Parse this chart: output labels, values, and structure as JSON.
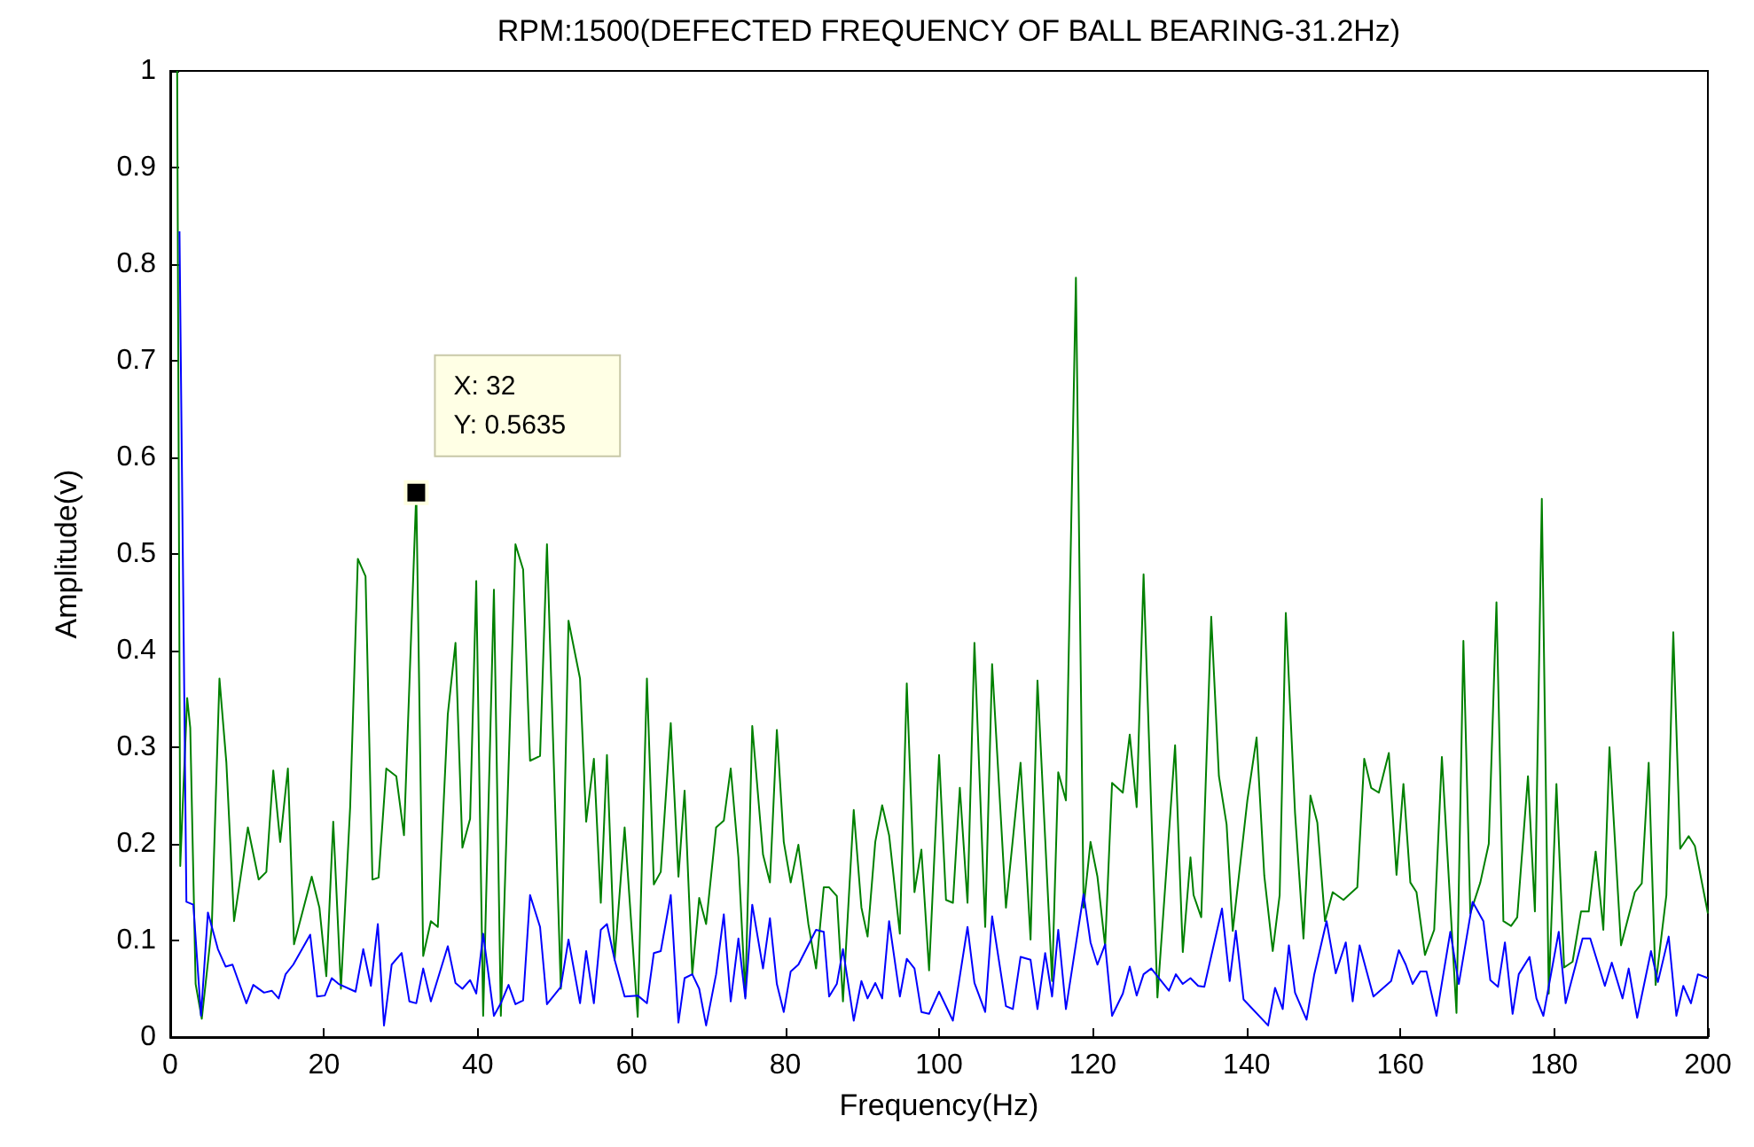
{
  "chart_data": {
    "type": "line",
    "title": "RPM:1500(DEFECTED FREQUENCY OF BALL BEARING-31.2Hz)",
    "xlabel": "Frequency(Hz)",
    "ylabel": "Amplitude(v)",
    "xlim": [
      0,
      200
    ],
    "xticks": [
      0,
      20,
      40,
      60,
      80,
      100,
      120,
      140,
      160,
      180,
      200
    ],
    "ylim": [
      0,
      1
    ],
    "yticks": [
      0,
      0.1,
      0.2,
      0.3,
      0.4,
      0.5,
      0.6,
      0.7,
      0.8,
      0.9,
      1
    ],
    "grid": false,
    "marker": "none",
    "line_style": "solid",
    "annotations": [
      {
        "text": "X: 32\nY: 0.5635",
        "x": 32,
        "y": 0.5635
      }
    ],
    "series": [
      {
        "color": "#008000",
        "x": [
          0.9,
          1.3,
          2.2,
          2.6,
          3.3,
          4.1,
          5.4,
          6.4,
          7.3,
          8.3,
          10.1,
          11.5,
          12.5,
          13.4,
          14.3,
          15.3,
          16.1,
          18.4,
          19.4,
          20.3,
          21.2,
          22.2,
          23.4,
          24.4,
          25.4,
          26.3,
          27.1,
          28.1,
          29.4,
          30.4,
          32,
          32.9,
          33.9,
          34.8,
          36.1,
          37.1,
          38,
          39,
          39.8,
          40.7,
          42.1,
          43,
          44,
          44.9,
          45.9,
          46.8,
          48.1,
          49,
          50.8,
          51.8,
          53.3,
          54.1,
          55.1,
          56,
          56.8,
          57.8,
          59.1,
          60.8,
          62,
          62.9,
          63.8,
          65.1,
          66.1,
          66.9,
          67.9,
          68.8,
          69.7,
          71,
          72,
          72.9,
          73.9,
          74.8,
          75.7,
          77.1,
          78,
          78.9,
          79.8,
          80.7,
          81.7,
          83,
          84,
          85,
          85.7,
          86.7,
          87.5,
          88.9,
          89.9,
          90.7,
          91.7,
          92.6,
          93.5,
          94.9,
          95.8,
          96.8,
          97.7,
          98.7,
          100,
          100.9,
          101.8,
          102.7,
          103.7,
          104.6,
          106,
          106.9,
          108.7,
          110.6,
          111.9,
          112.8,
          114.7,
          115.5,
          116.5,
          117.8,
          118.8,
          119.7,
          120.6,
          121.6,
          122.5,
          123.9,
          124.8,
          125.7,
          126.6,
          128.4,
          130.7,
          131.7,
          132.7,
          133.1,
          134.1,
          135.4,
          136.4,
          137.4,
          138.2,
          140.1,
          141.3,
          142.3,
          143.4,
          144.3,
          145.1,
          146.3,
          147.4,
          148.3,
          149.2,
          150.2,
          151.2,
          152.6,
          153.7,
          154.4,
          155.3,
          156.2,
          157.2,
          158.5,
          159.5,
          160.4,
          161.3,
          162.1,
          163.2,
          164.4,
          165.4,
          167.3,
          168.2,
          169.1,
          170.4,
          171.5,
          172.5,
          173.4,
          174.4,
          175.2,
          176.6,
          177.5,
          178.4,
          179.3,
          180.3,
          181.3,
          182.4,
          183.5,
          184.5,
          185.4,
          186.4,
          187.2,
          188.7,
          190.5,
          191.4,
          192.3,
          193.2,
          194.6,
          195.5,
          196.4,
          197.5,
          198.3,
          200
        ],
        "values": [
          1.0,
          0.177,
          0.351,
          0.32,
          0.055,
          0.019,
          0.114,
          0.371,
          0.284,
          0.12,
          0.217,
          0.163,
          0.171,
          0.276,
          0.202,
          0.278,
          0.096,
          0.166,
          0.134,
          0.063,
          0.223,
          0.05,
          0.238,
          0.495,
          0.477,
          0.163,
          0.165,
          0.278,
          0.27,
          0.209,
          0.5635,
          0.084,
          0.12,
          0.114,
          0.334,
          0.408,
          0.196,
          0.226,
          0.472,
          0.022,
          0.463,
          0.022,
          0.278,
          0.51,
          0.484,
          0.286,
          0.291,
          0.51,
          0.05,
          0.431,
          0.371,
          0.223,
          0.288,
          0.139,
          0.292,
          0.08,
          0.217,
          0.021,
          0.371,
          0.158,
          0.171,
          0.325,
          0.166,
          0.255,
          0.065,
          0.144,
          0.117,
          0.217,
          0.224,
          0.278,
          0.186,
          0.042,
          0.322,
          0.189,
          0.16,
          0.318,
          0.202,
          0.16,
          0.199,
          0.117,
          0.071,
          0.155,
          0.155,
          0.146,
          0.037,
          0.235,
          0.134,
          0.104,
          0.202,
          0.24,
          0.209,
          0.107,
          0.366,
          0.15,
          0.194,
          0.069,
          0.292,
          0.142,
          0.139,
          0.258,
          0.139,
          0.408,
          0.114,
          0.386,
          0.134,
          0.284,
          0.101,
          0.369,
          0.058,
          0.274,
          0.245,
          0.786,
          0.134,
          0.202,
          0.166,
          0.094,
          0.263,
          0.253,
          0.313,
          0.238,
          0.479,
          0.041,
          0.302,
          0.088,
          0.186,
          0.147,
          0.124,
          0.435,
          0.27,
          0.22,
          0.11,
          0.245,
          0.31,
          0.167,
          0.089,
          0.147,
          0.439,
          0.232,
          0.102,
          0.25,
          0.222,
          0.12,
          0.15,
          0.142,
          0.15,
          0.155,
          0.288,
          0.258,
          0.253,
          0.294,
          0.168,
          0.262,
          0.16,
          0.15,
          0.085,
          0.111,
          0.29,
          0.025,
          0.41,
          0.128,
          0.16,
          0.2,
          0.45,
          0.12,
          0.115,
          0.124,
          0.27,
          0.13,
          0.557,
          0.045,
          0.262,
          0.072,
          0.078,
          0.13,
          0.13,
          0.192,
          0.111,
          0.3,
          0.095,
          0.15,
          0.159,
          0.284,
          0.054,
          0.147,
          0.419,
          0.195,
          0.208,
          0.198,
          0.128
        ]
      },
      {
        "color": "#0000ff",
        "x": [
          1.2,
          2.1,
          3,
          4,
          4.9,
          6.2,
          7.2,
          8.1,
          9.9,
          10.8,
          12.2,
          13.2,
          14.1,
          15,
          16,
          18.2,
          19.1,
          20.1,
          21,
          21.9,
          24.1,
          25.1,
          26.1,
          27,
          27.8,
          28.8,
          30.1,
          31.1,
          32,
          32.9,
          33.9,
          36.1,
          37.1,
          38,
          39,
          39.8,
          40.7,
          42.1,
          43,
          44,
          44.9,
          45.9,
          46.8,
          48.1,
          49,
          50.8,
          51.8,
          53.3,
          54.1,
          55.1,
          56,
          56.8,
          57.8,
          59.1,
          60.8,
          62,
          62.9,
          63.8,
          65.1,
          66.1,
          66.9,
          67.9,
          68.8,
          69.7,
          71,
          72,
          72.9,
          73.9,
          74.8,
          75.7,
          77.1,
          78,
          78.9,
          79.8,
          80.7,
          81.7,
          84,
          85,
          85.7,
          86.7,
          87.5,
          88.9,
          89.9,
          90.7,
          91.7,
          92.6,
          93.5,
          94.9,
          95.8,
          96.8,
          97.7,
          98.7,
          100,
          101.8,
          103.7,
          104.6,
          106,
          106.9,
          108.7,
          109.6,
          110.6,
          111.9,
          112.8,
          113.8,
          114.7,
          115.5,
          116.5,
          118.8,
          119.7,
          120.6,
          121.6,
          122.5,
          123.9,
          124.8,
          125.7,
          126.6,
          127.6,
          129.9,
          130.8,
          131.7,
          132.7,
          133.7,
          134.5,
          136.8,
          137.8,
          138.6,
          139.6,
          142.8,
          143.7,
          144.7,
          145.5,
          146.3,
          147.8,
          148.8,
          150.4,
          151.6,
          152.9,
          153.8,
          154.7,
          156.5,
          158.8,
          159.8,
          160.7,
          161.6,
          162.6,
          163.4,
          164.7,
          166.5,
          167.6,
          169.4,
          170.8,
          171.7,
          172.7,
          173.6,
          174.6,
          175.4,
          176.8,
          177.7,
          178.6,
          180.6,
          181.5,
          183.7,
          184.7,
          186.6,
          187.5,
          188.9,
          189.7,
          190.8,
          192.6,
          193.5,
          194.9,
          195.9,
          196.8,
          197.8,
          198.7,
          200
        ],
        "values": [
          0.834,
          0.14,
          0.137,
          0.022,
          0.129,
          0.091,
          0.073,
          0.075,
          0.035,
          0.054,
          0.046,
          0.048,
          0.04,
          0.065,
          0.075,
          0.106,
          0.042,
          0.043,
          0.061,
          0.055,
          0.047,
          0.091,
          0.053,
          0.117,
          0.012,
          0.075,
          0.087,
          0.037,
          0.035,
          0.071,
          0.037,
          0.094,
          0.056,
          0.05,
          0.059,
          0.045,
          0.107,
          0.022,
          0.035,
          0.054,
          0.034,
          0.038,
          0.147,
          0.114,
          0.034,
          0.052,
          0.101,
          0.035,
          0.089,
          0.035,
          0.111,
          0.117,
          0.08,
          0.042,
          0.043,
          0.035,
          0.087,
          0.089,
          0.147,
          0.015,
          0.061,
          0.065,
          0.05,
          0.012,
          0.065,
          0.127,
          0.037,
          0.102,
          0.04,
          0.137,
          0.071,
          0.123,
          0.055,
          0.026,
          0.068,
          0.075,
          0.111,
          0.109,
          0.042,
          0.055,
          0.091,
          0.017,
          0.058,
          0.04,
          0.056,
          0.04,
          0.12,
          0.042,
          0.081,
          0.071,
          0.026,
          0.024,
          0.047,
          0.017,
          0.114,
          0.056,
          0.026,
          0.125,
          0.032,
          0.029,
          0.083,
          0.08,
          0.029,
          0.087,
          0.042,
          0.111,
          0.029,
          0.148,
          0.098,
          0.075,
          0.096,
          0.022,
          0.045,
          0.073,
          0.043,
          0.065,
          0.071,
          0.048,
          0.065,
          0.055,
          0.061,
          0.053,
          0.052,
          0.133,
          0.058,
          0.11,
          0.039,
          0.012,
          0.051,
          0.029,
          0.095,
          0.046,
          0.018,
          0.065,
          0.12,
          0.066,
          0.098,
          0.037,
          0.095,
          0.042,
          0.058,
          0.09,
          0.075,
          0.055,
          0.068,
          0.068,
          0.022,
          0.109,
          0.055,
          0.14,
          0.12,
          0.059,
          0.052,
          0.098,
          0.024,
          0.065,
          0.083,
          0.04,
          0.022,
          0.109,
          0.035,
          0.102,
          0.102,
          0.053,
          0.077,
          0.04,
          0.071,
          0.02,
          0.089,
          0.057,
          0.104,
          0.022,
          0.053,
          0.035,
          0.065,
          0.061
        ]
      }
    ]
  }
}
